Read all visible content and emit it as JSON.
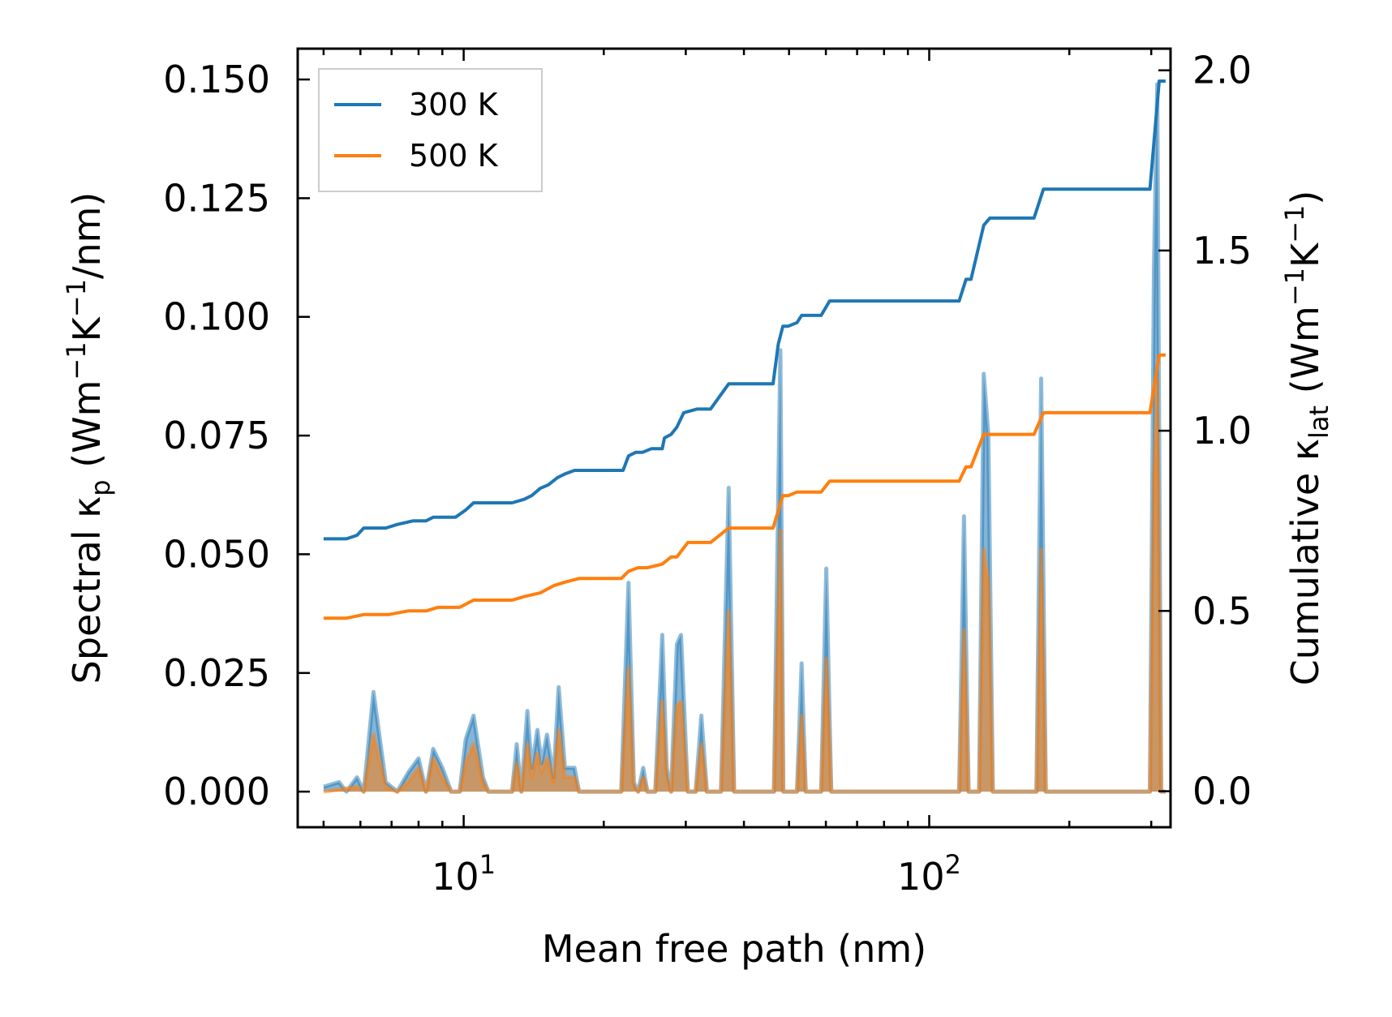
{
  "chart_data": {
    "type": "line",
    "xscale": "log",
    "xlabel": "Mean free path (nm)",
    "ylabel_left": {
      "main": "Spectral κ",
      "sub": "p",
      "units_open": " (Wm",
      "exp1": "−1",
      "mid": "K",
      "exp2": "−1",
      "units_close": "/nm)"
    },
    "ylabel_right": {
      "main": "Cumulative κ",
      "sub": "lat",
      "units_open": " (Wm",
      "exp1": "−1",
      "mid": "K",
      "exp2": "−1",
      "units_close": ")"
    },
    "xlim": [
      4.4,
      330
    ],
    "ylim_left": [
      -0.0075,
      0.1565
    ],
    "ylim_right": [
      -0.1,
      2.06
    ],
    "x_ticks": [
      {
        "value": 10,
        "base": "10",
        "exp": "1"
      },
      {
        "value": 100,
        "base": "10",
        "exp": "2"
      }
    ],
    "y_left_ticks": [
      {
        "value": 0.0,
        "label": "0.000"
      },
      {
        "value": 0.025,
        "label": "0.025"
      },
      {
        "value": 0.05,
        "label": "0.050"
      },
      {
        "value": 0.075,
        "label": "0.075"
      },
      {
        "value": 0.1,
        "label": "0.100"
      },
      {
        "value": 0.125,
        "label": "0.125"
      },
      {
        "value": 0.15,
        "label": "0.150"
      }
    ],
    "y_right_ticks": [
      {
        "value": 0.0,
        "label": "0.0"
      },
      {
        "value": 0.5,
        "label": "0.5"
      },
      {
        "value": 1.0,
        "label": "1.0"
      },
      {
        "value": 1.5,
        "label": "1.5"
      },
      {
        "value": 2.0,
        "label": "2.0"
      }
    ],
    "legend": {
      "position": "upper-left",
      "entries": [
        {
          "label": "300 K",
          "color": "#1f77b4"
        },
        {
          "label": "500 K",
          "color": "#ff7f0e"
        }
      ]
    },
    "series": [
      {
        "name": "300 K",
        "color": "#1f77b4",
        "cumulative_axis": "right",
        "cumulative": [
          [
            5.0,
            0.7
          ],
          [
            5.6,
            0.7
          ],
          [
            5.9,
            0.71
          ],
          [
            6.1,
            0.73
          ],
          [
            6.8,
            0.73
          ],
          [
            7.2,
            0.74
          ],
          [
            7.8,
            0.75
          ],
          [
            8.3,
            0.75
          ],
          [
            8.6,
            0.76
          ],
          [
            9.6,
            0.76
          ],
          [
            10.1,
            0.78
          ],
          [
            10.5,
            0.8
          ],
          [
            12.7,
            0.8
          ],
          [
            13.5,
            0.81
          ],
          [
            14.0,
            0.82
          ],
          [
            14.6,
            0.84
          ],
          [
            15.2,
            0.85
          ],
          [
            15.9,
            0.87
          ],
          [
            16.5,
            0.88
          ],
          [
            17.3,
            0.89
          ],
          [
            22.0,
            0.89
          ],
          [
            22.6,
            0.93
          ],
          [
            23.4,
            0.94
          ],
          [
            24.2,
            0.94
          ],
          [
            25.3,
            0.95
          ],
          [
            26.7,
            0.95
          ],
          [
            27.0,
            0.98
          ],
          [
            27.9,
            0.99
          ],
          [
            28.7,
            1.01
          ],
          [
            29.7,
            1.05
          ],
          [
            31.7,
            1.06
          ],
          [
            33.9,
            1.06
          ],
          [
            37.1,
            1.13
          ],
          [
            46.2,
            1.13
          ],
          [
            47.4,
            1.24
          ],
          [
            48.5,
            1.29
          ],
          [
            49.8,
            1.29
          ],
          [
            52.0,
            1.3
          ],
          [
            53.2,
            1.32
          ],
          [
            58.6,
            1.32
          ],
          [
            61.1,
            1.36
          ],
          [
            116.0,
            1.36
          ],
          [
            120.0,
            1.42
          ],
          [
            123.0,
            1.42
          ],
          [
            131.0,
            1.57
          ],
          [
            135.0,
            1.59
          ],
          [
            168.0,
            1.59
          ],
          [
            176.0,
            1.67
          ],
          [
            298.0,
            1.67
          ],
          [
            312.0,
            1.97
          ],
          [
            322.0,
            1.97
          ]
        ],
        "spectral_axis": "left",
        "spectral": [
          [
            5.0,
            0.001
          ],
          [
            5.4,
            0.002
          ],
          [
            5.6,
            0.0
          ],
          [
            5.9,
            0.003
          ],
          [
            6.1,
            0.0
          ],
          [
            6.4,
            0.021
          ],
          [
            6.8,
            0.002
          ],
          [
            7.2,
            0.0
          ],
          [
            7.6,
            0.004
          ],
          [
            8.0,
            0.007
          ],
          [
            8.3,
            0.0
          ],
          [
            8.6,
            0.009
          ],
          [
            9.0,
            0.005
          ],
          [
            9.4,
            0.0
          ],
          [
            9.8,
            0.0
          ],
          [
            10.1,
            0.011
          ],
          [
            10.5,
            0.016
          ],
          [
            11.0,
            0.003
          ],
          [
            11.3,
            0.0
          ],
          [
            12.7,
            0.0
          ],
          [
            13.0,
            0.01
          ],
          [
            13.3,
            0.0
          ],
          [
            13.7,
            0.017
          ],
          [
            14.0,
            0.005
          ],
          [
            14.4,
            0.013
          ],
          [
            14.7,
            0.006
          ],
          [
            15.1,
            0.012
          ],
          [
            15.6,
            0.003
          ],
          [
            16.0,
            0.022
          ],
          [
            16.5,
            0.005
          ],
          [
            17.3,
            0.005
          ],
          [
            17.7,
            0.0
          ],
          [
            21.8,
            0.0
          ],
          [
            22.6,
            0.044
          ],
          [
            23.2,
            0.002
          ],
          [
            23.7,
            0.0
          ],
          [
            24.3,
            0.005
          ],
          [
            24.8,
            0.0
          ],
          [
            25.8,
            0.0
          ],
          [
            26.7,
            0.033
          ],
          [
            27.3,
            0.005
          ],
          [
            27.9,
            0.0
          ],
          [
            28.7,
            0.031
          ],
          [
            29.3,
            0.033
          ],
          [
            30.3,
            0.0
          ],
          [
            31.5,
            0.0
          ],
          [
            32.4,
            0.016
          ],
          [
            33.3,
            0.0
          ],
          [
            35.7,
            0.0
          ],
          [
            37.1,
            0.064
          ],
          [
            38.1,
            0.0
          ],
          [
            46.4,
            0.0
          ],
          [
            47.9,
            0.093
          ],
          [
            48.6,
            0.0
          ],
          [
            52.0,
            0.0
          ],
          [
            53.2,
            0.027
          ],
          [
            54.3,
            0.0
          ],
          [
            58.6,
            0.0
          ],
          [
            60.1,
            0.047
          ],
          [
            61.6,
            0.0
          ],
          [
            116.0,
            0.0
          ],
          [
            118.8,
            0.058
          ],
          [
            121.5,
            0.0
          ],
          [
            128.0,
            0.0
          ],
          [
            131.0,
            0.088
          ],
          [
            134.0,
            0.075
          ],
          [
            137.0,
            0.0
          ],
          [
            170.0,
            0.0
          ],
          [
            174.0,
            0.087
          ],
          [
            178.0,
            0.0
          ],
          [
            298.0,
            0.0
          ],
          [
            304.0,
            0.11
          ],
          [
            309.0,
            0.149
          ],
          [
            315.0,
            0.0
          ],
          [
            322.0,
            0.0
          ]
        ]
      },
      {
        "name": "500 K",
        "color": "#ff7f0e",
        "cumulative_axis": "right",
        "cumulative": [
          [
            5.0,
            0.48
          ],
          [
            5.6,
            0.48
          ],
          [
            6.1,
            0.49
          ],
          [
            6.9,
            0.49
          ],
          [
            7.6,
            0.5
          ],
          [
            8.3,
            0.5
          ],
          [
            8.8,
            0.51
          ],
          [
            9.8,
            0.51
          ],
          [
            10.5,
            0.53
          ],
          [
            12.7,
            0.53
          ],
          [
            13.5,
            0.54
          ],
          [
            14.6,
            0.55
          ],
          [
            15.6,
            0.57
          ],
          [
            16.5,
            0.58
          ],
          [
            17.7,
            0.59
          ],
          [
            21.8,
            0.59
          ],
          [
            22.6,
            0.61
          ],
          [
            23.7,
            0.62
          ],
          [
            24.8,
            0.62
          ],
          [
            26.7,
            0.63
          ],
          [
            27.9,
            0.65
          ],
          [
            28.7,
            0.65
          ],
          [
            30.3,
            0.69
          ],
          [
            33.9,
            0.69
          ],
          [
            37.1,
            0.73
          ],
          [
            46.2,
            0.73
          ],
          [
            48.5,
            0.82
          ],
          [
            49.8,
            0.82
          ],
          [
            52.0,
            0.83
          ],
          [
            58.6,
            0.83
          ],
          [
            61.1,
            0.86
          ],
          [
            116.0,
            0.86
          ],
          [
            120.0,
            0.9
          ],
          [
            123.0,
            0.9
          ],
          [
            131.0,
            0.99
          ],
          [
            135.0,
            0.99
          ],
          [
            168.0,
            0.99
          ],
          [
            176.0,
            1.05
          ],
          [
            298.0,
            1.05
          ],
          [
            312.0,
            1.21
          ],
          [
            322.0,
            1.21
          ]
        ],
        "spectral_axis": "left",
        "spectral": [
          [
            5.0,
            0.0
          ],
          [
            5.9,
            0.001
          ],
          [
            6.1,
            0.0
          ],
          [
            6.4,
            0.012
          ],
          [
            6.8,
            0.001
          ],
          [
            7.2,
            0.0
          ],
          [
            7.6,
            0.002
          ],
          [
            8.0,
            0.005
          ],
          [
            8.3,
            0.0
          ],
          [
            8.6,
            0.007
          ],
          [
            9.0,
            0.003
          ],
          [
            9.4,
            0.0
          ],
          [
            9.8,
            0.0
          ],
          [
            10.1,
            0.006
          ],
          [
            10.5,
            0.01
          ],
          [
            11.0,
            0.002
          ],
          [
            11.3,
            0.0
          ],
          [
            12.7,
            0.0
          ],
          [
            13.0,
            0.006
          ],
          [
            13.3,
            0.0
          ],
          [
            13.7,
            0.01
          ],
          [
            14.0,
            0.003
          ],
          [
            14.4,
            0.008
          ],
          [
            14.7,
            0.004
          ],
          [
            15.1,
            0.007
          ],
          [
            15.6,
            0.002
          ],
          [
            16.0,
            0.013
          ],
          [
            16.5,
            0.003
          ],
          [
            17.3,
            0.003
          ],
          [
            17.7,
            0.0
          ],
          [
            21.8,
            0.0
          ],
          [
            22.6,
            0.026
          ],
          [
            23.2,
            0.001
          ],
          [
            23.7,
            0.0
          ],
          [
            24.3,
            0.003
          ],
          [
            24.8,
            0.0
          ],
          [
            25.8,
            0.0
          ],
          [
            26.7,
            0.019
          ],
          [
            27.3,
            0.003
          ],
          [
            27.9,
            0.0
          ],
          [
            28.7,
            0.018
          ],
          [
            29.3,
            0.019
          ],
          [
            30.3,
            0.0
          ],
          [
            31.5,
            0.0
          ],
          [
            32.4,
            0.01
          ],
          [
            33.3,
            0.0
          ],
          [
            35.7,
            0.0
          ],
          [
            37.1,
            0.038
          ],
          [
            38.1,
            0.0
          ],
          [
            46.4,
            0.0
          ],
          [
            47.9,
            0.055
          ],
          [
            48.6,
            0.0
          ],
          [
            52.0,
            0.0
          ],
          [
            53.2,
            0.016
          ],
          [
            54.3,
            0.0
          ],
          [
            58.6,
            0.0
          ],
          [
            60.1,
            0.028
          ],
          [
            61.6,
            0.0
          ],
          [
            116.0,
            0.0
          ],
          [
            118.8,
            0.034
          ],
          [
            121.5,
            0.0
          ],
          [
            128.0,
            0.0
          ],
          [
            131.0,
            0.051
          ],
          [
            134.0,
            0.044
          ],
          [
            137.0,
            0.0
          ],
          [
            170.0,
            0.0
          ],
          [
            174.0,
            0.051
          ],
          [
            178.0,
            0.0
          ],
          [
            298.0,
            0.0
          ],
          [
            304.0,
            0.066
          ],
          [
            309.0,
            0.087
          ],
          [
            315.0,
            0.0
          ],
          [
            322.0,
            0.0
          ]
        ]
      }
    ]
  }
}
